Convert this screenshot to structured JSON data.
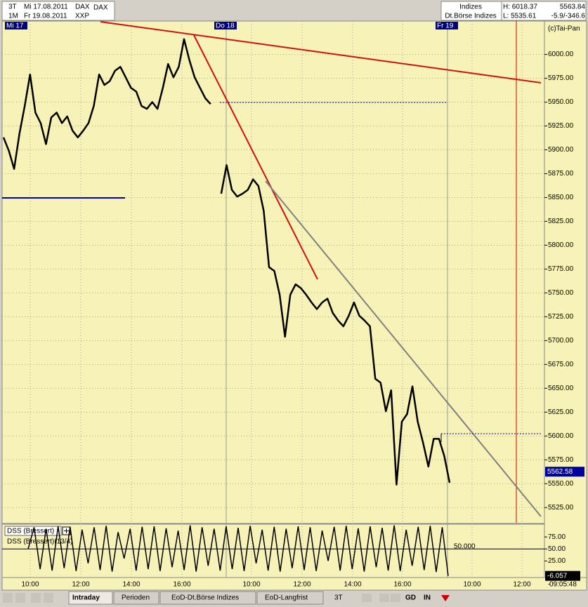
{
  "header": {
    "row1": [
      "3T",
      "Mi 17.08.2011",
      "DAX"
    ],
    "row2": [
      "1M",
      "Fr 19.08.2011",
      "XXP"
    ],
    "group": "Indizes",
    "exchange": "Dt.Börse Indizes",
    "high": "H: 6018.37",
    "low": "L: 5535.61",
    "last": "5563.84",
    "change": "-5.9/-346.6"
  },
  "copyright": "(c)Tai-Pan",
  "day_labels": [
    "Mi 17",
    "Do 18",
    "Fr 19"
  ],
  "chart_data": {
    "type": "line",
    "color": "#000000",
    "grid": true,
    "values": [
      5913,
      5899,
      5880,
      5917,
      5946,
      5979,
      5939,
      5928,
      5906,
      5934,
      5939,
      5928,
      5935,
      5920,
      5913,
      5920,
      5928,
      5946,
      5979,
      5968,
      5972,
      5983,
      5987,
      5976,
      5965,
      5961,
      5946,
      5943,
      5950,
      5943,
      5965,
      5990,
      5976,
      5987,
      6016,
      5994,
      5976,
      5965,
      5954,
      5948,
      null,
      5854,
      5884,
      5858,
      5851,
      5854,
      5858,
      5869,
      5862,
      5836,
      5777,
      5773,
      5748,
      5704,
      5748,
      5759,
      5755,
      5748,
      5740,
      5733,
      5740,
      5744,
      5729,
      5721,
      5715,
      5726,
      5740,
      5726,
      5721,
      5715,
      5660,
      5656,
      5626,
      5648,
      5549,
      5615,
      5623,
      5652,
      5615,
      5593,
      5568,
      5597,
      5597,
      5579,
      5551
    ],
    "ylim": [
      5509,
      6035
    ],
    "yticks": [
      {
        "value": 5525,
        "label": "5525.00"
      },
      {
        "value": 5550,
        "label": "5550.00"
      },
      {
        "value": 5575,
        "label": "5575.00"
      },
      {
        "value": 5600,
        "label": "5600.00"
      },
      {
        "value": 5625,
        "label": "5625.00"
      },
      {
        "value": 5650,
        "label": "5650.00"
      },
      {
        "value": 5675,
        "label": "5675.00"
      },
      {
        "value": 5700,
        "label": "5700.00"
      },
      {
        "value": 5725,
        "label": "5725.00"
      },
      {
        "value": 5750,
        "label": "5750.00"
      },
      {
        "value": 5775,
        "label": "5775.00"
      },
      {
        "value": 5800,
        "label": "5800.00"
      },
      {
        "value": 5825,
        "label": "5825.00"
      },
      {
        "value": 5850,
        "label": "5850.00"
      },
      {
        "value": 5875,
        "label": "5875.00"
      },
      {
        "value": 5900,
        "label": "5900.00"
      },
      {
        "value": 5925,
        "label": "5925.00"
      },
      {
        "value": 5950,
        "label": "5950.00"
      },
      {
        "value": 5975,
        "label": "5975.00"
      },
      {
        "value": 6000,
        "label": "6000.00"
      }
    ],
    "current_price": 5562.58,
    "x_labels": [
      "10:00",
      "12:00",
      "14:00",
      "16:00",
      "10:00",
      "12:00",
      "14:00",
      "16:00",
      "10:00",
      "12:00"
    ]
  },
  "oscillator": {
    "title": "DSS (Bressert)",
    "label": "DSS (Bressert)(13/4)",
    "level_label": "50.000",
    "ylim": [
      -8,
      100
    ],
    "yticks": [
      {
        "value": 75,
        "label": "75.00"
      },
      {
        "value": 50,
        "label": "50.00"
      },
      {
        "value": 25,
        "label": "25.00"
      }
    ],
    "values": [
      50,
      95,
      8,
      92,
      5,
      97,
      10,
      96,
      4,
      90,
      20,
      95,
      6,
      98,
      3,
      85,
      30,
      92,
      5,
      96,
      8,
      97,
      4,
      93,
      12,
      88,
      6,
      99,
      3,
      95,
      15,
      92,
      5,
      97,
      8,
      94,
      4,
      98,
      20,
      90,
      5,
      96,
      3,
      92,
      10,
      97,
      6,
      95,
      4,
      88,
      25,
      96,
      5,
      98,
      8,
      93,
      3,
      97,
      12,
      94,
      5,
      99,
      4,
      90,
      15,
      96,
      6,
      98,
      2,
      95,
      -6.057
    ]
  },
  "clock": "09:05:48",
  "toolbar": {
    "tabs": [
      "Intraday",
      "Perioden",
      "EoD-Dt.Börse Indizes",
      "EoD-Langfrist"
    ],
    "buttons": [
      "3T",
      "GD",
      "IN"
    ]
  }
}
